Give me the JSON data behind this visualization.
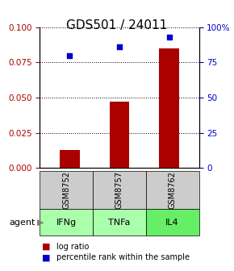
{
  "title": "GDS501 / 24011",
  "samples": [
    "GSM8752",
    "GSM8757",
    "GSM8762"
  ],
  "agents": [
    "IFNg",
    "TNFa",
    "IL4"
  ],
  "log_ratio": [
    0.013,
    0.047,
    0.085
  ],
  "percentile_rank": [
    80,
    86,
    93
  ],
  "ylim_left": [
    0,
    0.1
  ],
  "ylim_right": [
    0,
    100
  ],
  "yticks_left": [
    0,
    0.025,
    0.05,
    0.075,
    0.1
  ],
  "yticks_right": [
    0,
    25,
    50,
    75,
    100
  ],
  "bar_color": "#aa0000",
  "scatter_color": "#0000cc",
  "gray_box_color": "#cccccc",
  "green_box_colors": [
    "#aaffaa",
    "#aaffaa",
    "#66ee66"
  ],
  "agent_label": "agent",
  "legend_bar_label": "log ratio",
  "legend_scatter_label": "percentile rank within the sample",
  "title_fontsize": 11,
  "tick_fontsize": 7.5,
  "label_fontsize": 8
}
